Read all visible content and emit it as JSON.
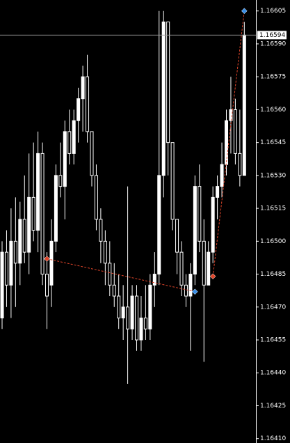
{
  "chart_data": {
    "type": "candlestick",
    "up_color": "#ffffff",
    "down_color": "#000000",
    "wick_color": "#ffffff",
    "ylim": [
      1.16408,
      1.1661
    ],
    "yticks": [
      1.16605,
      {
        "value": 1.1659,
        "label": "1.16590"
      },
      1.16575,
      {
        "value": 1.1656,
        "label": "1.16560"
      },
      1.16545,
      {
        "value": 1.1653,
        "label": "1.16530"
      },
      1.16515,
      {
        "value": 1.165,
        "label": "1.16500"
      },
      1.16485,
      {
        "value": 1.1647,
        "label": "1.16470"
      },
      1.16455,
      {
        "value": 1.1644,
        "label": "1.16440"
      },
      1.16425,
      {
        "value": 1.1641,
        "label": "1.16410"
      }
    ],
    "current_price": 1.16594,
    "open": [
      1.16465,
      1.16495,
      1.1648,
      1.165,
      1.1649,
      1.1651,
      1.16495,
      1.1652,
      1.16505,
      1.1654,
      1.16485,
      1.1648,
      1.165,
      1.1653,
      1.16525,
      1.1655,
      1.1654,
      1.16555,
      1.16565,
      1.16575,
      1.1655,
      1.1653,
      1.1651,
      1.165,
      1.1649,
      1.1648,
      1.16475,
      1.16465,
      1.1647,
      1.1646,
      1.16475,
      1.16455,
      1.16465,
      1.1646,
      1.1648,
      1.16485,
      1.1653,
      1.166,
      1.16545,
      1.1651,
      1.16495,
      1.1648,
      1.16475,
      1.16485,
      1.16525,
      1.165,
      1.1648,
      1.16495,
      1.1652,
      1.16525,
      1.16535,
      1.16555,
      1.1656,
      1.1654,
      1.1653
    ],
    "high": [
      1.165,
      1.16505,
      1.16515,
      1.1652,
      1.16518,
      1.1653,
      1.1654,
      1.16545,
      1.1655,
      1.16545,
      1.16495,
      1.1651,
      1.16535,
      1.16545,
      1.16555,
      1.1656,
      1.1656,
      1.1657,
      1.1658,
      1.16585,
      1.1655,
      1.16535,
      1.16515,
      1.16505,
      1.165,
      1.1649,
      1.16485,
      1.1648,
      1.16525,
      1.1648,
      1.1648,
      1.16475,
      1.1648,
      1.16485,
      1.16495,
      1.16605,
      1.16605,
      1.166,
      1.16545,
      1.1651,
      1.165,
      1.16485,
      1.1649,
      1.1653,
      1.16535,
      1.1651,
      1.165,
      1.16525,
      1.1653,
      1.16545,
      1.1656,
      1.16575,
      1.16565,
      1.1656,
      1.166
    ],
    "low": [
      1.1646,
      1.1647,
      1.16465,
      1.1647,
      1.1648,
      1.1649,
      1.16485,
      1.165,
      1.16495,
      1.1648,
      1.1646,
      1.1647,
      1.16495,
      1.1652,
      1.1651,
      1.16535,
      1.16535,
      1.16545,
      1.1655,
      1.16545,
      1.16525,
      1.16505,
      1.1649,
      1.1648,
      1.16475,
      1.1647,
      1.1646,
      1.16455,
      1.16435,
      1.16455,
      1.1645,
      1.1645,
      1.16455,
      1.16455,
      1.1647,
      1.1648,
      1.1652,
      1.1653,
      1.16505,
      1.16485,
      1.16475,
      1.1647,
      1.1645,
      1.1648,
      1.16495,
      1.16445,
      1.1648,
      1.1649,
      1.1651,
      1.1652,
      1.1653,
      1.1654,
      1.16535,
      1.16525,
      1.1653
    ],
    "close": [
      1.16495,
      1.1648,
      1.165,
      1.1649,
      1.1651,
      1.16495,
      1.1652,
      1.16505,
      1.1654,
      1.16485,
      1.16475,
      1.165,
      1.1653,
      1.16525,
      1.1655,
      1.1654,
      1.16555,
      1.16565,
      1.16575,
      1.1655,
      1.1653,
      1.1651,
      1.165,
      1.1649,
      1.1648,
      1.16475,
      1.16465,
      1.1647,
      1.1646,
      1.16475,
      1.16455,
      1.16465,
      1.1646,
      1.1648,
      1.16485,
      1.1653,
      1.166,
      1.16545,
      1.1651,
      1.16495,
      1.1648,
      1.16475,
      1.16485,
      1.16525,
      1.165,
      1.1648,
      1.16495,
      1.1652,
      1.16525,
      1.16535,
      1.16555,
      1.1656,
      1.1654,
      1.1653,
      1.16594
    ],
    "trades": [
      {
        "entry_index": 10,
        "entry_price": 1.16492,
        "exit_index": 43,
        "exit_price": 1.16477,
        "entry_color": "#e0452a",
        "exit_color": "#3a8ee6"
      },
      {
        "entry_index": 47,
        "entry_price": 1.16484,
        "exit_index": 54,
        "exit_price": 1.16605,
        "entry_color": "#e0452a",
        "exit_color": "#3a8ee6"
      }
    ]
  }
}
